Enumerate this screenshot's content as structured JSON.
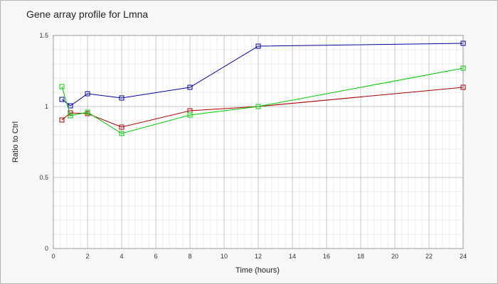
{
  "chart_data": {
    "type": "line",
    "title": "Gene array profile for Lmna",
    "xlabel": "Time (hours)",
    "ylabel": "Ratio to Ctrl",
    "xlim": [
      0,
      24
    ],
    "ylim": [
      0,
      1.5
    ],
    "xticks": [
      "0",
      "2",
      "4",
      "6",
      "8",
      "10",
      "12",
      "14",
      "16",
      "18",
      "20",
      "22",
      "24"
    ],
    "yticks": [
      "0",
      "0.5",
      "1",
      "1.5"
    ],
    "grid": true,
    "legend": "none",
    "x": [
      0.5,
      1,
      2,
      4,
      8,
      12,
      24
    ],
    "series": [
      {
        "color": "#000099",
        "values": [
          1.05,
          1.005,
          1.09,
          1.06,
          1.135,
          1.425,
          1.445
        ]
      },
      {
        "color": "#aa0000",
        "values": [
          0.905,
          0.955,
          0.95,
          0.855,
          0.97,
          1.0,
          1.135
        ]
      },
      {
        "color": "#00cc00",
        "values": [
          1.14,
          0.935,
          0.96,
          0.81,
          0.94,
          1.0,
          1.27
        ]
      }
    ]
  }
}
